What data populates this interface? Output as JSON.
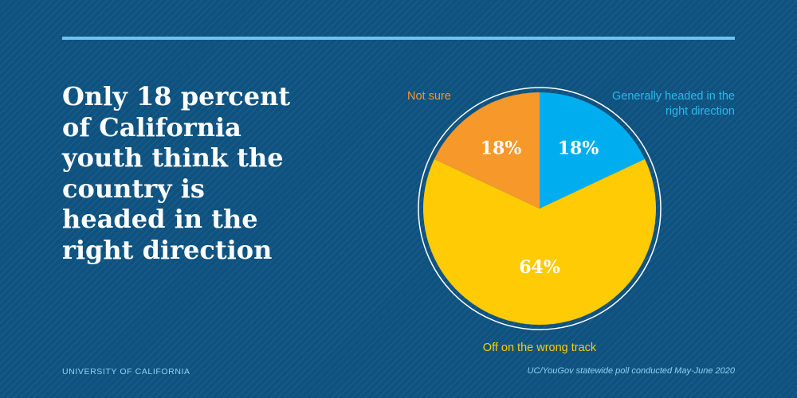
{
  "headline": "Only 18 percent of California youth think the country is headed in the right direction",
  "footer": {
    "org": "UNIVERSITY OF CALIFORNIA",
    "source": "UC/YouGov statewide poll conducted May-June 2020"
  },
  "chart_data": {
    "type": "pie",
    "title": "Only 18 percent of California youth think the country is headed in the right direction",
    "slices": [
      {
        "label": "Generally headed in the right direction",
        "value": 18,
        "display": "18%",
        "color": "#00aeef"
      },
      {
        "label": "Off on the wrong track",
        "value": 64,
        "display": "64%",
        "color": "#ffcb05"
      },
      {
        "label": "Not sure",
        "value": 18,
        "display": "18%",
        "color": "#f7982b"
      }
    ]
  }
}
